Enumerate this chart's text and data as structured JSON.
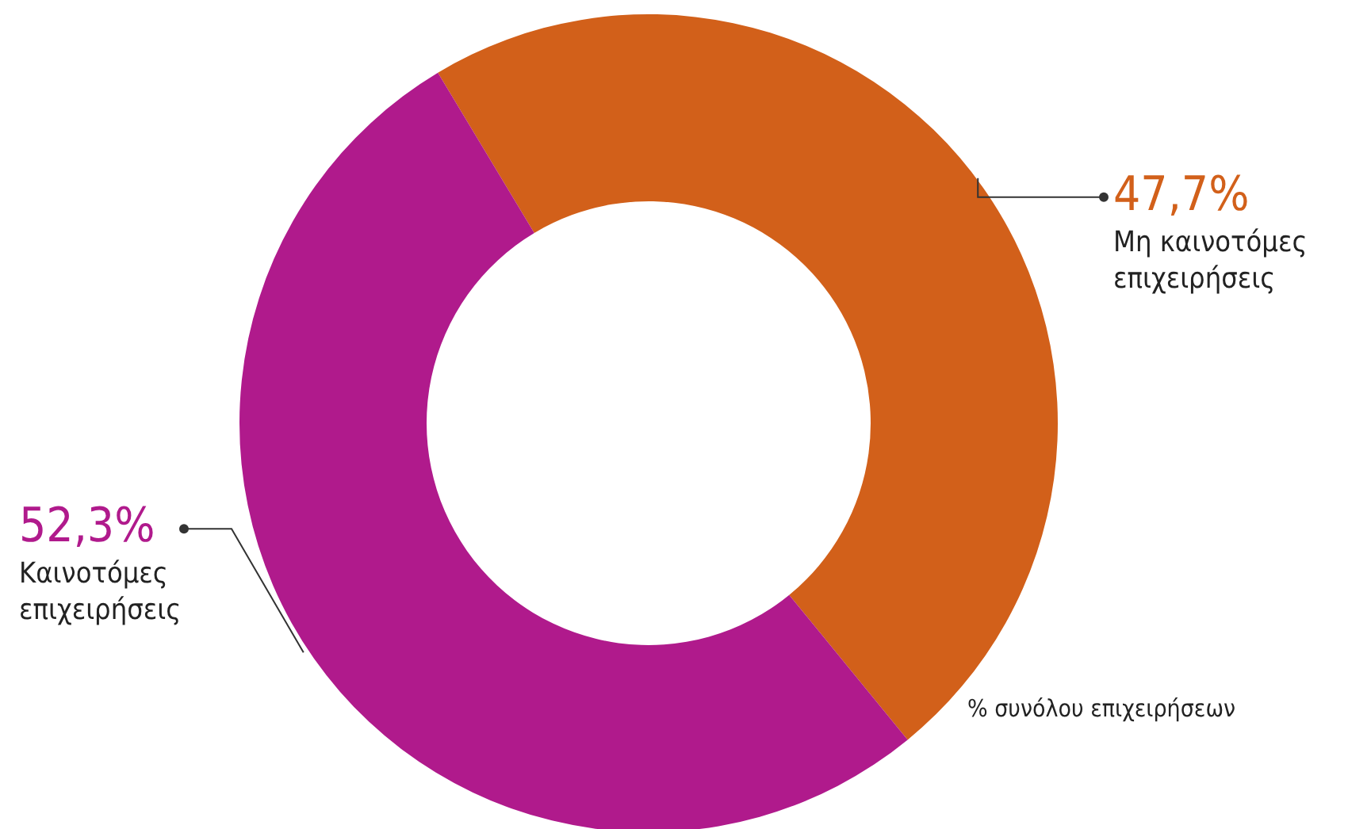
{
  "chart_data": {
    "type": "donut",
    "categories": [
      "Μη καινοτόμες επιχειρήσεις",
      "Καινοτόμες επιχειρήσεις"
    ],
    "values": [
      47.7,
      52.3
    ],
    "colors": [
      "#d2601a",
      "#b01a8c"
    ],
    "value_labels": [
      "47,7%",
      "52,3%"
    ],
    "annotations": [
      "% συνόλου επιχειρήσεων"
    ]
  }
}
